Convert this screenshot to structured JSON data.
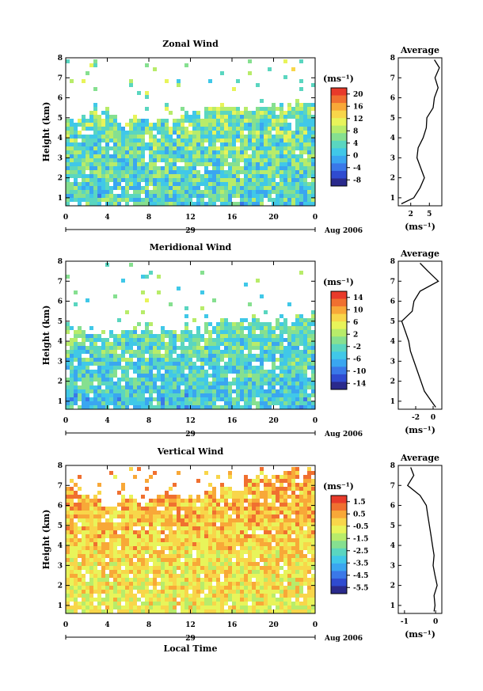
{
  "chart_data": [
    {
      "type": "heatmap",
      "title": "Zonal Wind",
      "ylabel": "Height (km)",
      "yticks": [
        "1",
        "2",
        "3",
        "4",
        "5",
        "6",
        "7",
        "8"
      ],
      "ylim": [
        0.6,
        8
      ],
      "xticks": [
        "0",
        "4",
        "8",
        "12",
        "16",
        "20",
        "0"
      ],
      "xlim": [
        0,
        24
      ],
      "date_day": "29",
      "date_label": "Aug 2006",
      "colorbar": {
        "unit": "(ms⁻¹)",
        "ticks": [
          "20",
          "16",
          "12",
          "8",
          "4",
          "0",
          "-4",
          "-8"
        ],
        "range": [
          -10,
          22
        ]
      },
      "data_top_km": [
        5.0,
        5.2,
        5.6,
        5.4,
        5.0,
        4.8,
        5.0,
        5.2,
        5.0,
        4.9,
        5.1,
        5.3,
        5.2,
        5.4,
        5.6,
        5.7,
        5.5,
        5.6,
        5.8,
        5.7,
        5.6,
        5.8,
        6.0,
        6.1
      ],
      "average_profile": {
        "title": "Average",
        "xlabel": "(ms⁻¹)",
        "xticks": [
          "2",
          "5"
        ],
        "xlim": [
          0,
          7
        ],
        "height_km": [
          0.7,
          1.0,
          1.5,
          2.0,
          2.5,
          3.0,
          3.5,
          4.0,
          4.5,
          5.0,
          5.5,
          6.0,
          6.5,
          7.0,
          7.5,
          7.9
        ],
        "value": [
          0.5,
          2.5,
          3.5,
          4.2,
          3.6,
          3.0,
          3.2,
          4.0,
          4.5,
          4.6,
          5.6,
          5.8,
          6.4,
          5.9,
          6.6,
          5.8
        ]
      }
    },
    {
      "type": "heatmap",
      "title": "Meridional Wind",
      "ylabel": "Height (km)",
      "yticks": [
        "1",
        "2",
        "3",
        "4",
        "5",
        "6",
        "7",
        "8"
      ],
      "ylim": [
        0.6,
        8
      ],
      "xticks": [
        "0",
        "4",
        "8",
        "12",
        "16",
        "20",
        "0"
      ],
      "xlim": [
        0,
        24
      ],
      "date_day": "29",
      "date_label": "Aug 2006",
      "colorbar": {
        "unit": "(ms⁻¹)",
        "ticks": [
          "14",
          "10",
          "6",
          "2",
          "-2",
          "-6",
          "-10",
          "-14"
        ],
        "range": [
          -16,
          16
        ]
      },
      "data_top_km": [
        4.8,
        4.6,
        4.7,
        4.5,
        4.6,
        4.8,
        4.7,
        4.8,
        4.6,
        4.9,
        4.7,
        4.8,
        4.6,
        4.9,
        5.0,
        5.2,
        5.1,
        5.3,
        5.0,
        4.9,
        5.2,
        5.0,
        5.3,
        5.5
      ],
      "average_profile": {
        "title": "Average",
        "xlabel": "(ms⁻¹)",
        "xticks": [
          "-2",
          "0"
        ],
        "xlim": [
          -4,
          1
        ],
        "height_km": [
          0.7,
          1.0,
          1.5,
          2.0,
          2.5,
          3.0,
          3.5,
          4.0,
          4.5,
          5.0,
          5.5,
          6.0,
          6.5,
          7.0,
          7.5,
          7.9
        ],
        "value": [
          0.3,
          -0.2,
          -1.0,
          -1.4,
          -1.8,
          -2.2,
          -2.6,
          -2.8,
          -3.2,
          -3.6,
          -2.4,
          -2.2,
          -1.5,
          0.6,
          -0.6,
          -1.5
        ]
      }
    },
    {
      "type": "heatmap",
      "title": "Vertical Wind",
      "ylabel": "Height (km)",
      "xlabel": "Local Time",
      "yticks": [
        "1",
        "2",
        "3",
        "4",
        "5",
        "6",
        "7",
        "8"
      ],
      "ylim": [
        0.6,
        8
      ],
      "xticks": [
        "0",
        "4",
        "8",
        "12",
        "16",
        "20",
        "0"
      ],
      "xlim": [
        0,
        24
      ],
      "date_day": "29",
      "date_label": "Aug 2006",
      "colorbar": {
        "unit": "(ms⁻¹)",
        "ticks": [
          "1.5",
          "0.5",
          "-0.5",
          "-1.5",
          "-2.5",
          "-3.5",
          "-4.5",
          "-5.5"
        ],
        "range": [
          -6,
          2
        ]
      },
      "data_top_km": [
        6.8,
        6.6,
        6.4,
        6.2,
        6.3,
        6.5,
        6.4,
        6.3,
        6.5,
        6.6,
        6.4,
        6.5,
        6.6,
        6.8,
        7.0,
        7.2,
        7.0,
        7.3,
        7.5,
        7.4,
        7.6,
        7.8,
        7.9,
        8.0
      ],
      "average_profile": {
        "title": "Average",
        "xlabel": "(ms⁻¹)",
        "xticks": [
          "-1",
          "0"
        ],
        "xlim": [
          -1.2,
          0.2
        ],
        "height_km": [
          0.7,
          1.0,
          1.5,
          2.0,
          2.5,
          3.0,
          3.5,
          4.0,
          4.5,
          5.0,
          5.5,
          6.0,
          6.5,
          7.0,
          7.5,
          7.9
        ],
        "value": [
          -0.05,
          -0.02,
          -0.05,
          0.05,
          -0.02,
          -0.08,
          -0.05,
          -0.1,
          -0.15,
          -0.2,
          -0.25,
          -0.3,
          -0.5,
          -0.9,
          -0.7,
          -0.8
        ]
      }
    }
  ]
}
